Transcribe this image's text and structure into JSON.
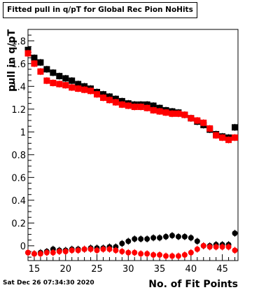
{
  "title": "Fitted pull in q/pT for Global Rec Pion NoHits",
  "footer": "Sat Dec 26 07:34:30 2020",
  "chart_data": {
    "type": "scatter",
    "title": "Fitted pull in q/pT for Global Rec Pion NoHits",
    "xlabel": "No. of Fit Points",
    "ylabel": "pull in q/pT",
    "xlim": [
      14,
      47.5
    ],
    "ylim": [
      -0.13,
      1.9
    ],
    "xticks": [
      15,
      20,
      25,
      30,
      35,
      40,
      45
    ],
    "yticks": [
      0,
      0.2,
      0.4,
      0.6,
      0.8,
      1,
      1.2,
      1.4,
      1.6,
      1.8
    ],
    "ytick_labels": [
      "0",
      "0.2",
      "0.4",
      "0.6",
      "0.8",
      "1",
      "1.2",
      "1.4",
      "1.6",
      "1.8"
    ],
    "grid": false,
    "series": [
      {
        "role": "width-black",
        "color": "#000000",
        "marker": "square",
        "x": [
          14,
          15,
          16,
          17,
          18,
          19,
          20,
          21,
          22,
          23,
          24,
          25,
          26,
          27,
          28,
          29,
          30,
          31,
          32,
          33,
          34,
          35,
          36,
          37,
          38,
          39,
          40,
          41,
          42,
          43,
          44,
          45,
          46,
          47
        ],
        "y": [
          1.72,
          1.65,
          1.61,
          1.55,
          1.52,
          1.49,
          1.47,
          1.45,
          1.42,
          1.4,
          1.38,
          1.35,
          1.33,
          1.31,
          1.29,
          1.27,
          1.25,
          1.24,
          1.24,
          1.24,
          1.23,
          1.21,
          1.19,
          1.18,
          1.17,
          1.15,
          1.12,
          1.09,
          1.06,
          1.02,
          0.98,
          0.96,
          0.95,
          1.04
        ]
      },
      {
        "role": "width-red",
        "color": "#ff0000",
        "marker": "square",
        "x": [
          14,
          15,
          16,
          17,
          18,
          19,
          20,
          21,
          22,
          23,
          24,
          25,
          26,
          27,
          28,
          29,
          30,
          31,
          32,
          33,
          34,
          35,
          36,
          37,
          38,
          39,
          40,
          41,
          42,
          43,
          44,
          45,
          46,
          47
        ],
        "y": [
          1.69,
          1.6,
          1.53,
          1.45,
          1.43,
          1.42,
          1.41,
          1.39,
          1.38,
          1.37,
          1.36,
          1.33,
          1.3,
          1.28,
          1.26,
          1.24,
          1.23,
          1.22,
          1.22,
          1.21,
          1.19,
          1.18,
          1.17,
          1.16,
          1.16,
          1.15,
          1.12,
          1.1,
          1.08,
          1.03,
          0.97,
          0.95,
          0.93,
          0.95
        ]
      },
      {
        "role": "mean-black",
        "color": "#000000",
        "marker": "circle",
        "x": [
          14,
          15,
          16,
          17,
          18,
          19,
          20,
          21,
          22,
          23,
          24,
          25,
          26,
          27,
          28,
          29,
          30,
          31,
          32,
          33,
          34,
          35,
          36,
          37,
          38,
          39,
          40,
          41,
          42,
          43,
          44,
          45,
          46,
          47
        ],
        "y": [
          -0.06,
          -0.07,
          -0.06,
          -0.05,
          -0.03,
          -0.04,
          -0.04,
          -0.03,
          -0.03,
          -0.03,
          -0.02,
          -0.02,
          -0.02,
          -0.01,
          -0.01,
          0.02,
          0.04,
          0.06,
          0.06,
          0.06,
          0.07,
          0.07,
          0.08,
          0.09,
          0.08,
          0.08,
          0.07,
          0.04,
          0.0,
          0.0,
          0.01,
          0.01,
          0.01,
          0.11
        ]
      },
      {
        "role": "mean-red",
        "color": "#ff0000",
        "marker": "circle",
        "x": [
          14,
          15,
          16,
          17,
          18,
          19,
          20,
          21,
          22,
          23,
          24,
          25,
          26,
          27,
          28,
          29,
          30,
          31,
          32,
          33,
          34,
          35,
          36,
          37,
          38,
          39,
          40,
          41,
          42,
          43,
          44,
          45,
          46,
          47
        ],
        "y": [
          -0.06,
          -0.07,
          -0.07,
          -0.06,
          -0.06,
          -0.05,
          -0.05,
          -0.04,
          -0.04,
          -0.03,
          -0.03,
          -0.04,
          -0.03,
          -0.03,
          -0.04,
          -0.05,
          -0.06,
          -0.06,
          -0.07,
          -0.07,
          -0.08,
          -0.08,
          -0.09,
          -0.09,
          -0.09,
          -0.08,
          -0.06,
          -0.03,
          0.0,
          -0.01,
          -0.01,
          -0.01,
          -0.01,
          -0.04
        ]
      }
    ]
  }
}
